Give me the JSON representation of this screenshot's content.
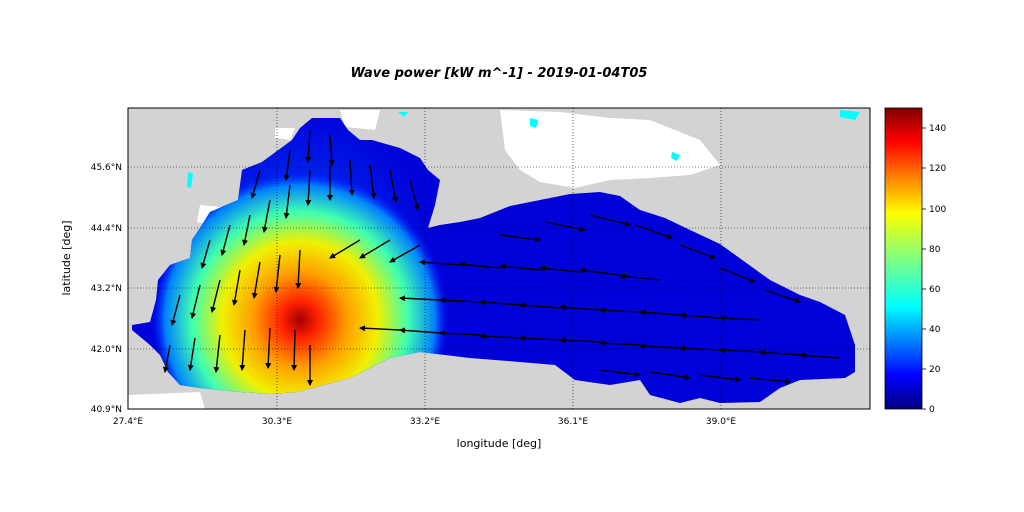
{
  "title": "Wave power [kW m^-1] - 2019-01-04T05",
  "x_axis": {
    "label": "longitude [deg]",
    "ticks": [
      "27.4°E",
      "30.3°E",
      "33.2°E",
      "36.1°E",
      "39.0°E"
    ],
    "tick_values": [
      27.4,
      30.3,
      33.2,
      36.1,
      39.0
    ],
    "range": [
      27.4,
      42.0
    ]
  },
  "y_axis": {
    "label": "latitude [deg]",
    "ticks": [
      "40.9°N",
      "42.0°N",
      "43.2°N",
      "44.4°N",
      "45.6°N"
    ],
    "tick_values": [
      40.9,
      42.0,
      43.2,
      44.4,
      45.6
    ],
    "range": [
      40.9,
      46.8
    ]
  },
  "colorbar": {
    "colormap": "jet",
    "range": [
      0,
      150
    ],
    "ticks": [
      "0",
      "20",
      "40",
      "60",
      "80",
      "100",
      "120",
      "140"
    ],
    "tick_values": [
      0,
      20,
      40,
      60,
      80,
      100,
      120,
      140
    ]
  },
  "colors": {
    "land": "#d3d3d3",
    "lakes": "#00ffff",
    "coast_outside": "#ffffff",
    "borders": "#b5b58a",
    "grid": "#000000",
    "arrows": "#000000"
  },
  "map_features": {
    "region": "Black Sea",
    "grid": "dotted",
    "max_power_region_lonlat": [
      30.8,
      42.6
    ],
    "max_power_kw_per_m": 145,
    "dominant_wave_direction": "north-to-south in western basin, east-to-west in central basin"
  }
}
